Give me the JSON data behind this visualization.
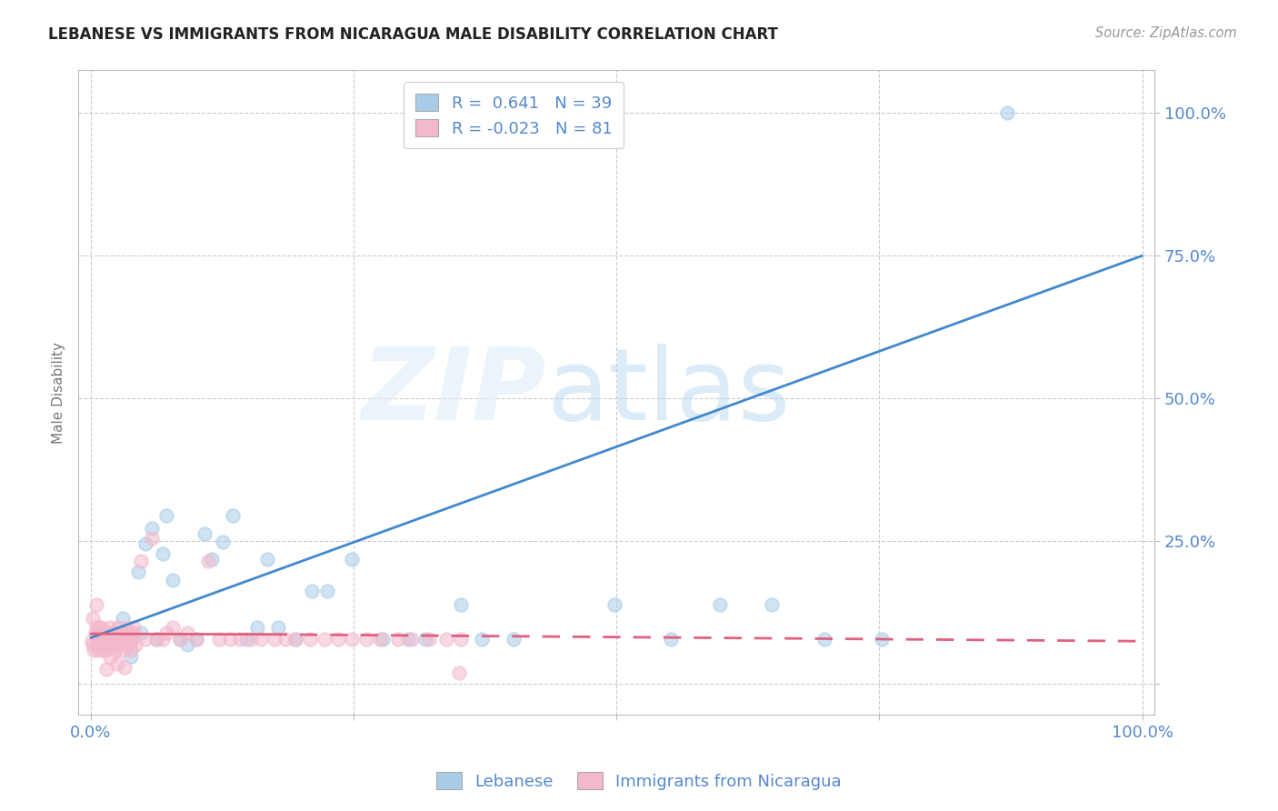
{
  "title": "LEBANESE VS IMMIGRANTS FROM NICARAGUA MALE DISABILITY CORRELATION CHART",
  "source": "Source: ZipAtlas.com",
  "ylabel": "Male Disability",
  "legend_r1": "R =  0.641   N = 39",
  "legend_r2": "R = -0.023   N = 81",
  "blue_color": "#a8cce8",
  "pink_color": "#f4b8cb",
  "blue_line_color": "#4488cc",
  "pink_line_color": "#e06080",
  "tick_color": "#5588cc",
  "grid_color": "#cccccc",
  "blue_scatter_x": [
    0.022,
    0.03,
    0.038,
    0.045,
    0.048,
    0.052,
    0.058,
    0.062,
    0.068,
    0.072,
    0.078,
    0.085,
    0.092,
    0.1,
    0.108,
    0.115,
    0.125,
    0.135,
    0.148,
    0.158,
    0.168,
    0.178,
    0.195,
    0.21,
    0.225,
    0.248,
    0.278,
    0.302,
    0.318,
    0.352,
    0.372,
    0.402,
    0.498,
    0.552,
    0.598,
    0.648,
    0.698,
    0.752,
    0.872
  ],
  "blue_scatter_y": [
    0.075,
    0.115,
    0.048,
    0.195,
    0.088,
    0.245,
    0.272,
    0.078,
    0.228,
    0.295,
    0.182,
    0.078,
    0.068,
    0.078,
    0.262,
    0.218,
    0.248,
    0.295,
    0.078,
    0.098,
    0.218,
    0.098,
    0.078,
    0.162,
    0.162,
    0.218,
    0.078,
    0.078,
    0.078,
    0.138,
    0.078,
    0.078,
    0.138,
    0.078,
    0.138,
    0.138,
    0.078,
    0.078,
    1.0
  ],
  "pink_scatter_x": [
    0.001,
    0.002,
    0.003,
    0.004,
    0.005,
    0.006,
    0.007,
    0.008,
    0.009,
    0.01,
    0.011,
    0.012,
    0.013,
    0.014,
    0.015,
    0.016,
    0.017,
    0.018,
    0.019,
    0.02,
    0.021,
    0.022,
    0.023,
    0.024,
    0.025,
    0.026,
    0.027,
    0.028,
    0.029,
    0.03,
    0.031,
    0.032,
    0.033,
    0.034,
    0.035,
    0.036,
    0.037,
    0.038,
    0.039,
    0.04,
    0.041,
    0.042,
    0.048,
    0.052,
    0.058,
    0.062,
    0.068,
    0.072,
    0.078,
    0.085,
    0.092,
    0.1,
    0.112,
    0.122,
    0.132,
    0.142,
    0.152,
    0.162,
    0.175,
    0.185,
    0.195,
    0.208,
    0.222,
    0.235,
    0.248,
    0.262,
    0.275,
    0.292,
    0.305,
    0.322,
    0.338,
    0.352,
    0.002,
    0.005,
    0.008,
    0.012,
    0.018,
    0.025,
    0.032,
    0.015,
    0.35
  ],
  "pink_scatter_y": [
    0.075,
    0.068,
    0.058,
    0.088,
    0.098,
    0.068,
    0.078,
    0.058,
    0.088,
    0.098,
    0.078,
    0.068,
    0.088,
    0.078,
    0.058,
    0.068,
    0.088,
    0.098,
    0.078,
    0.068,
    0.088,
    0.078,
    0.058,
    0.068,
    0.088,
    0.098,
    0.078,
    0.068,
    0.078,
    0.058,
    0.088,
    0.078,
    0.068,
    0.098,
    0.088,
    0.078,
    0.068,
    0.058,
    0.078,
    0.088,
    0.098,
    0.068,
    0.215,
    0.078,
    0.255,
    0.078,
    0.078,
    0.088,
    0.098,
    0.078,
    0.088,
    0.078,
    0.215,
    0.078,
    0.078,
    0.078,
    0.078,
    0.078,
    0.078,
    0.078,
    0.078,
    0.078,
    0.078,
    0.078,
    0.078,
    0.078,
    0.078,
    0.078,
    0.078,
    0.078,
    0.078,
    0.078,
    0.115,
    0.138,
    0.098,
    0.058,
    0.045,
    0.035,
    0.028,
    0.025,
    0.018
  ],
  "blue_line": [
    0.0,
    0.08,
    1.0,
    0.75
  ],
  "pink_line_solid": [
    0.0,
    0.087,
    0.17,
    0.086
  ],
  "pink_line_dashed": [
    0.17,
    0.086,
    1.0,
    0.074
  ],
  "xlim": [
    -0.012,
    1.012
  ],
  "ylim": [
    -0.055,
    1.075
  ],
  "xticks": [
    0.0,
    0.25,
    0.5,
    0.75,
    1.0
  ],
  "yticks": [
    0.0,
    0.25,
    0.5,
    0.75,
    1.0
  ],
  "xticklabels": [
    "0.0%",
    "",
    "",
    "",
    "100.0%"
  ],
  "yticklabels": [
    "",
    "25.0%",
    "50.0%",
    "75.0%",
    "100.0%"
  ]
}
